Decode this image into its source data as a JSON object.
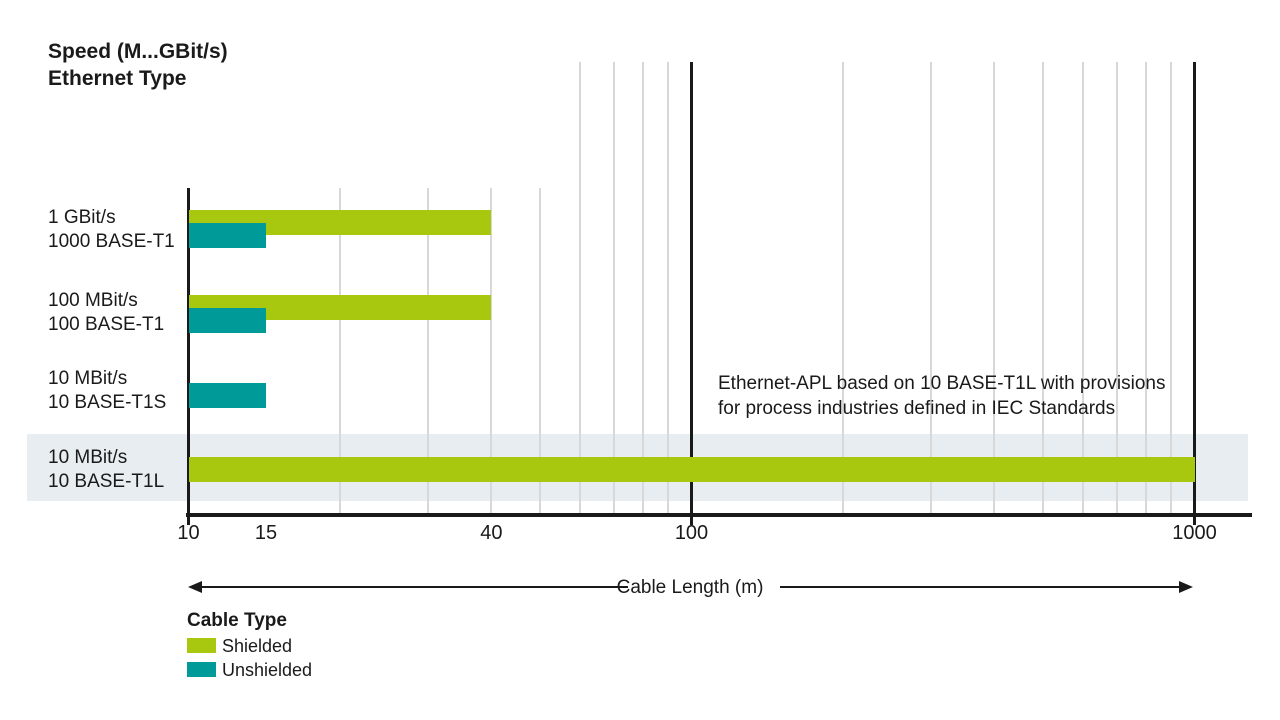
{
  "title": {
    "line1": "Speed (M...GBit/s)",
    "line2": "Ethernet Type"
  },
  "annotation": {
    "line1": "Ethernet-APL based on 10 BASE-T1L with provisions",
    "line2": "for process industries defined in IEC Standards"
  },
  "legend": {
    "title": "Cable Type",
    "items": [
      {
        "label": "Shielded",
        "color": "#a8c70f"
      },
      {
        "label": "Unshielded",
        "color": "#009a98"
      }
    ]
  },
  "chart_data": {
    "type": "bar",
    "orientation": "horizontal",
    "title": "Speed (M...GBit/s) / Ethernet Type",
    "xlabel": "Cable Length (m)",
    "x_scale": "log",
    "xlim": [
      10,
      1000
    ],
    "x_tick_labels": [
      "10",
      "15",
      "40",
      "100",
      "1000"
    ],
    "x_major_lines": [
      100,
      1000
    ],
    "x_gridlines_tall": [
      60,
      70,
      80,
      90,
      200,
      300,
      400,
      500,
      600,
      700,
      800,
      900
    ],
    "x_gridlines_short": [
      20,
      30,
      40,
      50
    ],
    "categories": [
      {
        "speed": "1 GBit/s",
        "ethernet_type": "1000 BASE-T1"
      },
      {
        "speed": "100 MBit/s",
        "ethernet_type": "100 BASE-T1"
      },
      {
        "speed": "10 MBit/s",
        "ethernet_type": "10 BASE-T1S"
      },
      {
        "speed": "10 MBit/s",
        "ethernet_type": "10 BASE-T1L"
      }
    ],
    "series": [
      {
        "name": "Shielded",
        "color": "#a8c70f",
        "values": [
          40,
          40,
          null,
          1000
        ]
      },
      {
        "name": "Unshielded",
        "color": "#009a98",
        "values": [
          15,
          15,
          15,
          null
        ]
      }
    ],
    "highlighted_row_index": 3,
    "highlight_color": "#e8edf2",
    "grid_color": "#d8d8d8",
    "line_color": "#1a1a1a",
    "legend_position": "bottom-left",
    "annotation_text": "Ethernet-APL based on 10 BASE-T1L with provisions for process industries defined in IEC Standards"
  }
}
